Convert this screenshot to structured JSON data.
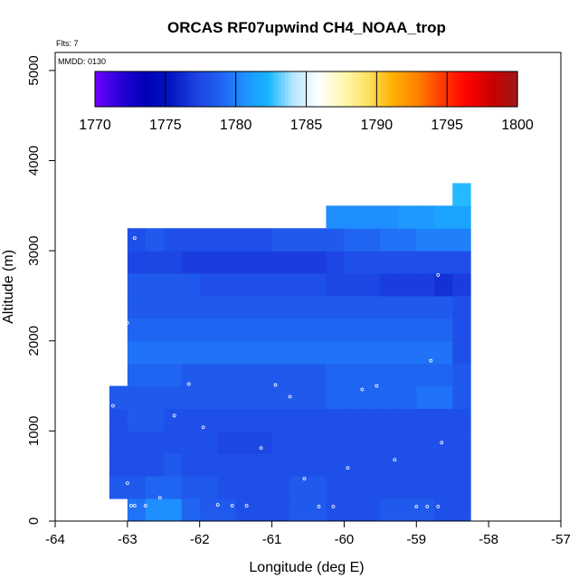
{
  "chart_data": {
    "type": "heatmap",
    "title": "ORCAS RF07upwind CH4_NOAA_trop",
    "xlabel": "Longitude (deg E)",
    "ylabel": "Altitude (m)",
    "xlim": [
      -64,
      -57
    ],
    "ylim": [
      0,
      5200
    ],
    "xticks": [
      -64,
      -63,
      -62,
      -61,
      -60,
      -59,
      -58,
      -57
    ],
    "yticks": [
      0,
      1000,
      2000,
      3000,
      4000,
      5000
    ],
    "flts_label": "Flts: 7",
    "mmdd_label": "MMDD: 0130",
    "colorbar": {
      "min": 1770,
      "max": 1800,
      "ticks": [
        1770,
        1775,
        1780,
        1785,
        1790,
        1795,
        1800
      ],
      "colors": [
        "#6f00ff",
        "#2b00d8",
        "#0000b8",
        "#0014c0",
        "#1c3ee0",
        "#2060f0",
        "#1f90ff",
        "#18b6ff",
        "#b8e8ff",
        "#ffffff",
        "#fff8b0",
        "#ffe060",
        "#ffb000",
        "#ff8000",
        "#ff3800",
        "#ff0000",
        "#c80000",
        "#a01818"
      ]
    },
    "grid": {
      "lon_start": -63.25,
      "lon_step": 0.25,
      "alt_step": 250,
      "rows": [
        {
          "alt": 0,
          "values": [
            null,
            1779.5,
            1780.5,
            1780.5,
            1779,
            1778.5,
            1778.5,
            1778,
            1778,
            1778,
            1778.5,
            1778.5,
            1778,
            1778,
            1778,
            1778.5,
            1778.5,
            1778.5,
            1778,
            1778
          ]
        },
        {
          "alt": 250,
          "values": [
            1778.5,
            1778.5,
            1779,
            1779,
            1778.5,
            1778.5,
            1778,
            1778,
            1778,
            1778,
            1778.5,
            1778.5,
            1778,
            1778,
            1778,
            1778,
            1778,
            1778,
            1778,
            1778
          ]
        },
        {
          "alt": 500,
          "values": [
            1778,
            1778,
            1778,
            1778.5,
            1778,
            1778,
            1778,
            1778,
            1778,
            1778,
            1778,
            1778,
            1778,
            1778,
            1778,
            1778,
            1778,
            1778,
            1778,
            1778
          ]
        },
        {
          "alt": 750,
          "values": [
            1778,
            1778,
            1778,
            1778,
            1778,
            1778,
            1777.5,
            1777.5,
            1777.5,
            1778,
            1778,
            1778,
            1778,
            1778,
            1778,
            1778,
            1778,
            1778,
            1778,
            1778
          ]
        },
        {
          "alt": 1000,
          "values": [
            1778,
            1778.5,
            1778.5,
            1778,
            1778,
            1778,
            1778,
            1778,
            1778,
            1778,
            1778,
            1778,
            1778,
            1778,
            1778,
            1778,
            1778,
            1778,
            1778,
            1778
          ]
        },
        {
          "alt": 1250,
          "values": [
            1778.5,
            1778.5,
            1778.5,
            1778.5,
            1778.5,
            1778.5,
            1778.5,
            1778.5,
            1778.5,
            1778.5,
            1778.5,
            1778.5,
            1779,
            1779,
            1779,
            1779,
            1779,
            1779.5,
            1779.5,
            1778.5
          ]
        },
        {
          "alt": 1500,
          "values": [
            null,
            1779,
            1779,
            1779,
            1778.5,
            1778.5,
            1778.5,
            1778.5,
            1778.5,
            1778.5,
            1778.5,
            1778.5,
            1779,
            1779,
            1779,
            1779,
            1779,
            1779,
            1779,
            1778.5
          ]
        },
        {
          "alt": 1750,
          "values": [
            null,
            1779.5,
            1779.5,
            1779.5,
            1779.5,
            1779.5,
            1779.5,
            1779.5,
            1779.5,
            1779.5,
            1779.5,
            1779.5,
            1779.5,
            1779.5,
            1779.5,
            1779.5,
            1779.5,
            1779.5,
            1779.5,
            1778
          ]
        },
        {
          "alt": 2000,
          "values": [
            null,
            1779,
            1779,
            1779,
            1779,
            1779,
            1779,
            1779,
            1779,
            1779,
            1779,
            1779,
            1779,
            1779,
            1779,
            1779,
            1779,
            1779,
            1779,
            1778
          ]
        },
        {
          "alt": 2250,
          "values": [
            null,
            1778.5,
            1778.5,
            1778.5,
            1778.5,
            1778.5,
            1778.5,
            1778.5,
            1778.5,
            1778.5,
            1778.5,
            1778.5,
            1778.5,
            1778.5,
            1778.5,
            1778.5,
            1778.5,
            1778.5,
            1778.5,
            1778
          ]
        },
        {
          "alt": 2500,
          "values": [
            null,
            1778.5,
            1778.5,
            1778.5,
            1778.5,
            1778,
            1778,
            1778,
            1778,
            1778,
            1778,
            1778,
            1777.5,
            1777.5,
            1777.5,
            1777,
            1777,
            1777,
            1776.5,
            1777
          ]
        },
        {
          "alt": 2750,
          "values": [
            null,
            1777.5,
            1777.5,
            1777.5,
            1777,
            1777,
            1777,
            1777,
            1777,
            1777,
            1777,
            1777,
            1777.5,
            1778,
            1778,
            1778,
            1778,
            1778,
            1778,
            1778
          ]
        },
        {
          "alt": 3000,
          "values": [
            null,
            1778,
            1778.5,
            1778,
            1778,
            1778,
            1778,
            1778,
            1778,
            1778.5,
            1778.5,
            1778.5,
            1778.5,
            1779,
            1779,
            1779.5,
            1779.5,
            1780,
            1780,
            1780
          ]
        },
        {
          "alt": 3250,
          "values": [
            null,
            null,
            null,
            null,
            null,
            null,
            null,
            null,
            null,
            null,
            null,
            null,
            1780.5,
            1780.5,
            1780.5,
            1780.5,
            1781,
            1781,
            1781.5,
            1781.5
          ]
        },
        {
          "alt": 3500,
          "values": [
            null,
            null,
            null,
            null,
            null,
            null,
            null,
            null,
            null,
            null,
            null,
            null,
            null,
            null,
            null,
            null,
            null,
            null,
            null,
            1782.5
          ]
        }
      ]
    },
    "sample_points": [
      {
        "lon": -62.95,
        "alt": 170
      },
      {
        "lon": -62.9,
        "alt": 170
      },
      {
        "lon": -62.75,
        "alt": 170
      },
      {
        "lon": -62.55,
        "alt": 260
      },
      {
        "lon": -61.75,
        "alt": 180
      },
      {
        "lon": -61.55,
        "alt": 170
      },
      {
        "lon": -61.35,
        "alt": 170
      },
      {
        "lon": -60.35,
        "alt": 160
      },
      {
        "lon": -60.15,
        "alt": 160
      },
      {
        "lon": -59.0,
        "alt": 160
      },
      {
        "lon": -58.85,
        "alt": 160
      },
      {
        "lon": -58.7,
        "alt": 160
      },
      {
        "lon": -63.0,
        "alt": 420
      },
      {
        "lon": -60.55,
        "alt": 470
      },
      {
        "lon": -59.95,
        "alt": 590
      },
      {
        "lon": -59.3,
        "alt": 680
      },
      {
        "lon": -61.15,
        "alt": 810
      },
      {
        "lon": -58.65,
        "alt": 870
      },
      {
        "lon": -61.95,
        "alt": 1040
      },
      {
        "lon": -62.35,
        "alt": 1170
      },
      {
        "lon": -63.2,
        "alt": 1280
      },
      {
        "lon": -60.75,
        "alt": 1380
      },
      {
        "lon": -59.75,
        "alt": 1460
      },
      {
        "lon": -59.55,
        "alt": 1500
      },
      {
        "lon": -62.15,
        "alt": 1520
      },
      {
        "lon": -60.95,
        "alt": 1510
      },
      {
        "lon": -58.8,
        "alt": 1780
      },
      {
        "lon": -63.0,
        "alt": 2200
      },
      {
        "lon": -58.7,
        "alt": 2730
      },
      {
        "lon": -62.9,
        "alt": 3140
      },
      {
        "lon": -58.62,
        "alt": 3660
      }
    ]
  }
}
